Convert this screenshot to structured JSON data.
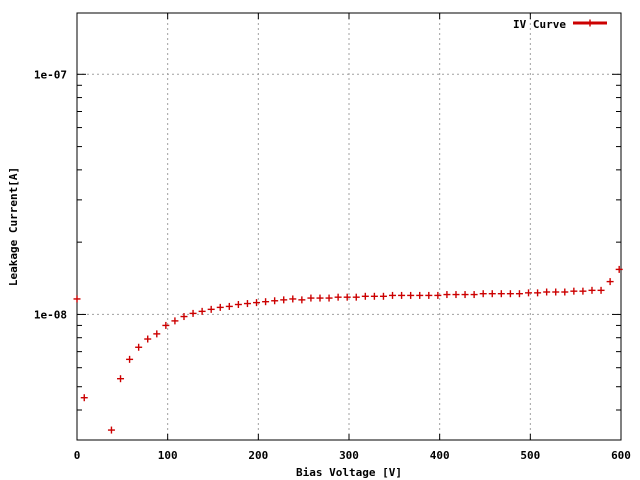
{
  "chart_data": {
    "type": "scatter",
    "title": "",
    "xlabel": "Bias Voltage [V]",
    "ylabel": "Leakage Current[A]",
    "xlim": [
      0,
      600
    ],
    "ylim": [
      3e-09,
      1.8e-07
    ],
    "yscale": "log",
    "grid": true,
    "legend_position": "top-right",
    "x_ticks": [
      {
        "value": 0,
        "label": "0"
      },
      {
        "value": 100,
        "label": "100"
      },
      {
        "value": 200,
        "label": "200"
      },
      {
        "value": 300,
        "label": "300"
      },
      {
        "value": 400,
        "label": "400"
      },
      {
        "value": 500,
        "label": "500"
      },
      {
        "value": 600,
        "label": "600"
      }
    ],
    "y_ticks": [
      {
        "value": 1e-07,
        "label": "1e-07"
      },
      {
        "value": 1e-08,
        "label": "1e-08"
      }
    ],
    "series": [
      {
        "name": "IV Curve",
        "color": "#cc0000",
        "marker": "plus",
        "x": [
          0,
          8,
          38,
          48,
          58,
          68,
          78,
          88,
          98,
          108,
          118,
          128,
          138,
          148,
          158,
          168,
          178,
          188,
          198,
          208,
          218,
          228,
          238,
          248,
          258,
          268,
          278,
          288,
          298,
          308,
          318,
          328,
          338,
          348,
          358,
          368,
          378,
          388,
          398,
          408,
          418,
          428,
          438,
          448,
          458,
          468,
          478,
          488,
          498,
          508,
          518,
          528,
          538,
          548,
          558,
          568,
          578,
          588,
          598
        ],
        "y": [
          1.16e-08,
          4.5e-09,
          3.3e-09,
          5.4e-09,
          6.5e-09,
          7.3e-09,
          7.9e-09,
          8.3e-09,
          9e-09,
          9.4e-09,
          9.8e-09,
          1.01e-08,
          1.03e-08,
          1.05e-08,
          1.07e-08,
          1.08e-08,
          1.1e-08,
          1.11e-08,
          1.12e-08,
          1.13e-08,
          1.14e-08,
          1.15e-08,
          1.16e-08,
          1.15e-08,
          1.17e-08,
          1.17e-08,
          1.17e-08,
          1.18e-08,
          1.18e-08,
          1.18e-08,
          1.19e-08,
          1.19e-08,
          1.19e-08,
          1.2e-08,
          1.2e-08,
          1.2e-08,
          1.2e-08,
          1.2e-08,
          1.2e-08,
          1.21e-08,
          1.21e-08,
          1.21e-08,
          1.21e-08,
          1.22e-08,
          1.22e-08,
          1.22e-08,
          1.22e-08,
          1.22e-08,
          1.23e-08,
          1.23e-08,
          1.24e-08,
          1.24e-08,
          1.24e-08,
          1.25e-08,
          1.25e-08,
          1.26e-08,
          1.26e-08,
          1.37e-08,
          1.54e-08
        ]
      }
    ]
  }
}
